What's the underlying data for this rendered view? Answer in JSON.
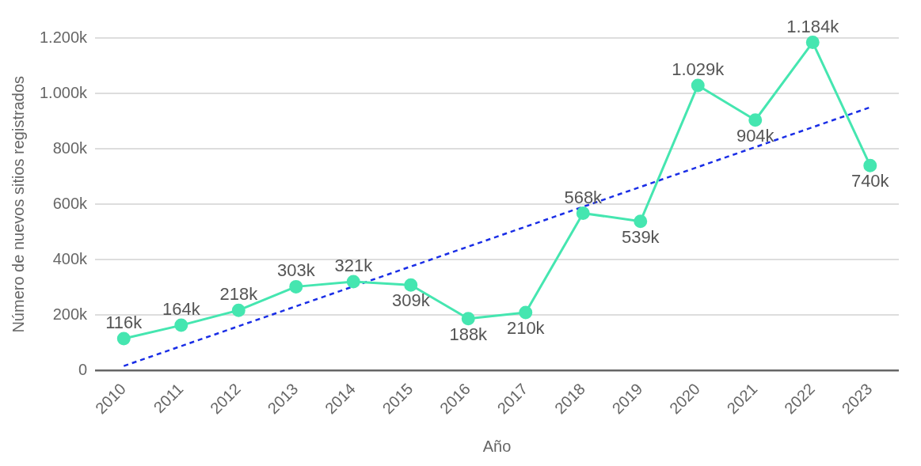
{
  "chart_data": {
    "type": "line",
    "xlabel": "Año",
    "ylabel": "Número de nuevos sitios registrados",
    "categories": [
      "2010",
      "2011",
      "2012",
      "2013",
      "2014",
      "2015",
      "2016",
      "2017",
      "2018",
      "2019",
      "2020",
      "2021",
      "2022",
      "2023"
    ],
    "series": [
      {
        "color": "#45e6b0",
        "values": [
          116,
          164,
          218,
          303,
          321,
          309,
          188,
          210,
          568,
          539,
          1029,
          904,
          1184,
          740
        ],
        "value_labels": [
          "116k",
          "164k",
          "218k",
          "303k",
          "321k",
          "309k",
          "188k",
          "210k",
          "568k",
          "539k",
          "1.029k",
          "904k",
          "1.184k",
          "740k"
        ],
        "marker": "circle",
        "line_style": "solid"
      },
      {
        "type": "line",
        "color": "#1a2ee6",
        "values": [
          17,
          null,
          null,
          null,
          null,
          null,
          null,
          null,
          null,
          null,
          null,
          null,
          null,
          950
        ],
        "marker": "none",
        "line_style": "dashed"
      }
    ],
    "ylim": [
      0,
      1200
    ],
    "yticks": [
      0,
      {
        "value": 200,
        "label": "200k"
      },
      {
        "value": 400,
        "label": "400k"
      },
      {
        "value": 600,
        "label": "600k"
      },
      {
        "value": 800,
        "label": "800k"
      },
      {
        "value": 1000,
        "label": "1.000k"
      },
      {
        "value": 1200,
        "label": "1.200k"
      }
    ],
    "grid": "y",
    "legend": false
  }
}
